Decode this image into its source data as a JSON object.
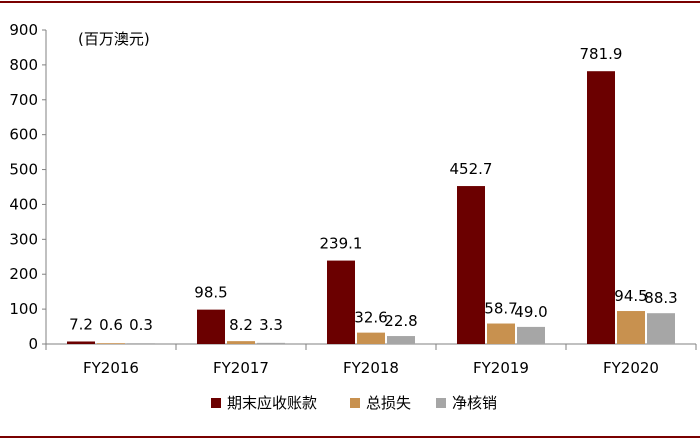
{
  "chart_data": {
    "type": "bar",
    "unit_note": "(百万澳元)",
    "categories": [
      "FY2016",
      "FY2017",
      "FY2018",
      "FY2019",
      "FY2020"
    ],
    "series": [
      {
        "name": "期末应收账款",
        "values": [
          7.2,
          98.5,
          239.1,
          452.7,
          781.9
        ],
        "labels": [
          "7.2",
          "98.5",
          "239.1",
          "452.7",
          "781.9"
        ]
      },
      {
        "name": "总损失",
        "values": [
          0.6,
          8.2,
          32.6,
          58.7,
          94.5
        ],
        "labels": [
          "0.6",
          "8.2",
          "32.6",
          "58.7",
          "94.5"
        ]
      },
      {
        "name": "净核销",
        "values": [
          0.3,
          3.3,
          22.8,
          49.0,
          88.3
        ],
        "labels": [
          "0.3",
          "3.3",
          "22.8",
          "49.0",
          "88.3"
        ]
      }
    ],
    "ylim": [
      0,
      900
    ],
    "yticks": [
      "0",
      "100",
      "200",
      "300",
      "400",
      "500",
      "600",
      "700",
      "800",
      "900"
    ],
    "grid": false,
    "legend_position": "bottom",
    "colors": [
      "#6b0000",
      "#c8914f",
      "#a6a6a6"
    ]
  }
}
